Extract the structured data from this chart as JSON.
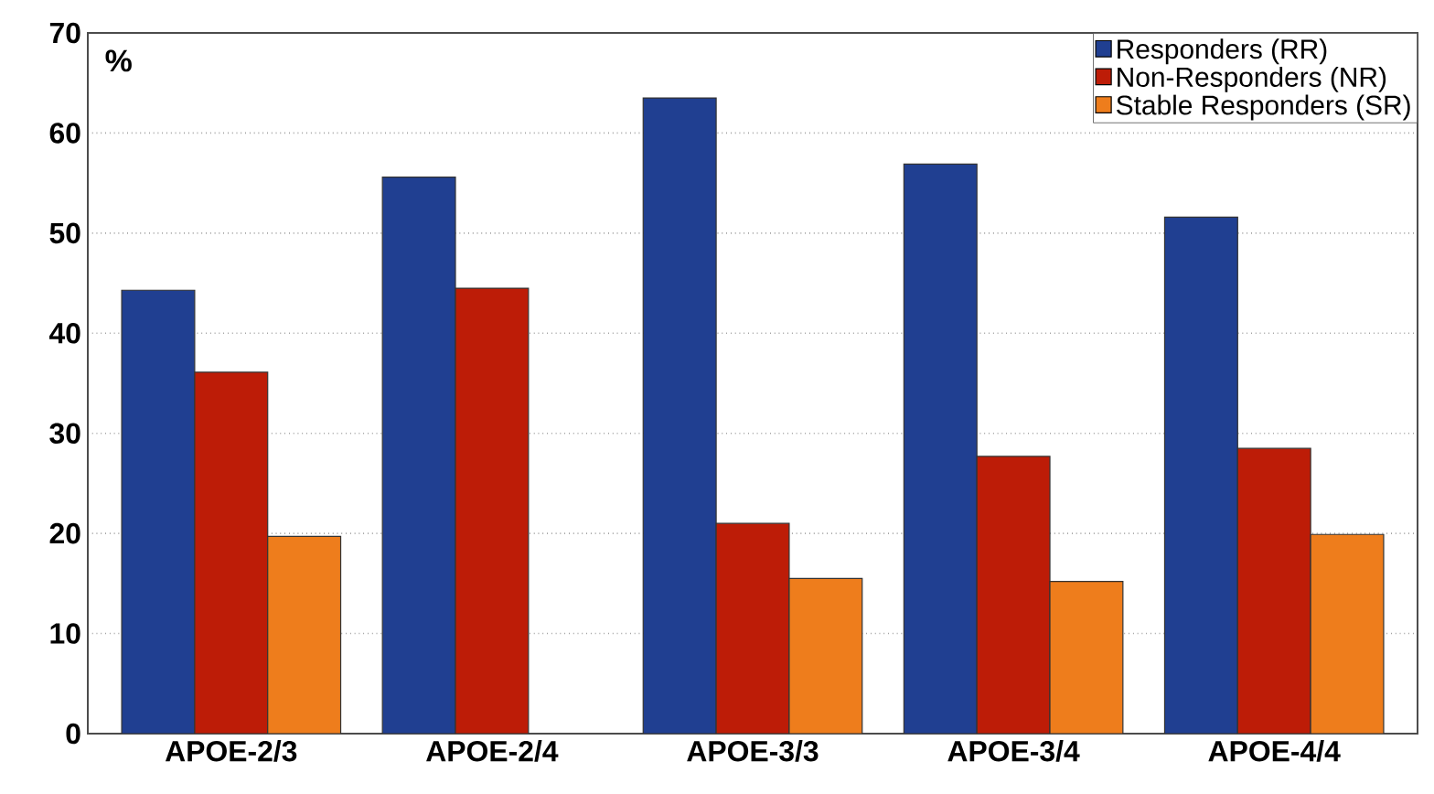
{
  "chart_data": {
    "type": "bar",
    "ylabel": "%",
    "categories": [
      "APOE-2/3",
      "APOE-2/4",
      "APOE-3/3",
      "APOE-3/4",
      "APOE-4/4"
    ],
    "series": [
      {
        "name": "Responders (RR)",
        "color": "#203f91",
        "values": [
          44.3,
          55.6,
          63.5,
          56.9,
          51.6
        ]
      },
      {
        "name": "Non-Responders (NR)",
        "color": "#bd1c07",
        "values": [
          36.1,
          44.5,
          21.0,
          27.7,
          28.5
        ]
      },
      {
        "name": "Stable Responders (SR)",
        "color": "#ee7d1c",
        "values": [
          19.7,
          null,
          15.5,
          15.2,
          19.9
        ]
      }
    ],
    "ylim": [
      0,
      70
    ],
    "yticks": [
      0,
      10,
      20,
      30,
      40,
      50,
      60,
      70
    ],
    "grid": "y",
    "legend": "top right"
  }
}
